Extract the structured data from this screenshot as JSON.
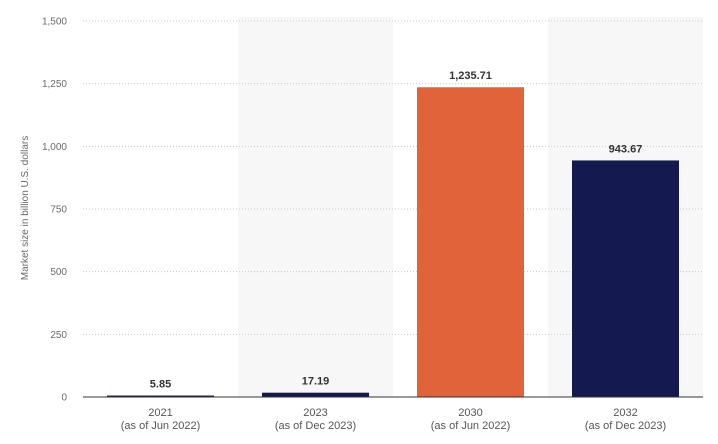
{
  "chart_data": {
    "type": "bar",
    "title": "",
    "xlabel": "",
    "ylabel": "Market size in billion U.S. dollars",
    "ylim": [
      0,
      1500
    ],
    "yticks": [
      0,
      250,
      500,
      750,
      1000,
      1250,
      1500
    ],
    "ytick_labels": [
      "0",
      "250",
      "500",
      "750",
      "1,000",
      "1,250",
      "1,500"
    ],
    "grid": true,
    "legend": "none",
    "categories": [
      {
        "year": "2021",
        "note": "(as of Jun 2022)"
      },
      {
        "year": "2023",
        "note": "(as of Dec 2023)"
      },
      {
        "year": "2030",
        "note": "(as of Jun 2022)"
      },
      {
        "year": "2032",
        "note": "(as of Dec 2023)"
      }
    ],
    "values": [
      5.85,
      17.19,
      1235.71,
      943.67
    ],
    "value_labels": [
      "5.85",
      "17.19",
      "1,235.71",
      "943.67"
    ],
    "bar_colors": [
      "#141a4f",
      "#141a4f",
      "#e0633a",
      "#141a4f"
    ],
    "band_color": "#f7f7f7"
  }
}
